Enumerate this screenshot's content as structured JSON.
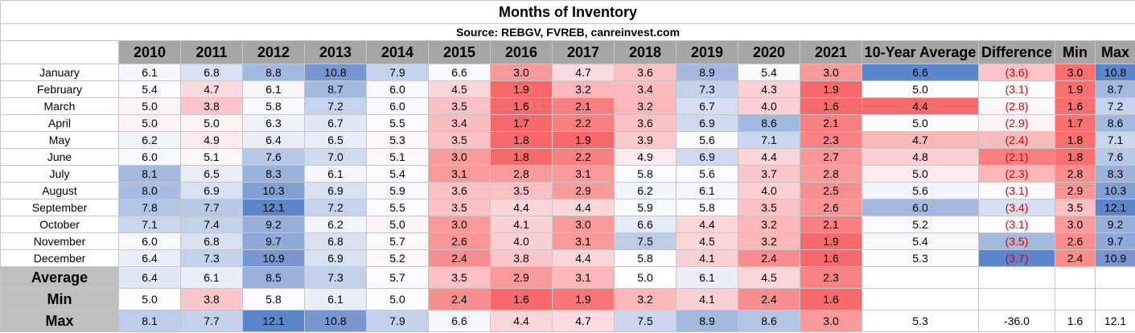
{
  "title": "Months of Inventory",
  "source": "Source: REBGV, FVREB, canreinvest.com",
  "headers": [
    "2010",
    "2011",
    "2012",
    "2013",
    "2014",
    "2015",
    "2016",
    "2017",
    "2018",
    "2019",
    "2020",
    "2021",
    "10-Year Average",
    "Difference",
    "Min",
    "Max"
  ],
  "rows": [
    {
      "label": "January",
      "values": [
        "6.1",
        "6.8",
        "8.8",
        "10.8",
        "7.9",
        "6.6",
        "3.0",
        "4.7",
        "3.6",
        "8.9",
        "5.4",
        "3.0",
        "6.6",
        "(3.6)",
        "3.0",
        "10.8"
      ],
      "colors": [
        "#f4f6fb",
        "#d8e1f1",
        "#a4b9e0",
        "#7896d0",
        "#c5d3ec",
        "#f7f9fc",
        "#f99a9a",
        "#f9dadf",
        "#fbc1c4",
        "#a5b9e0",
        "#f9f9fc",
        "#f99a9a",
        "#5b86cb",
        "#fbc4c8",
        "#fb6f6f",
        "#5b86cb"
      ]
    },
    {
      "label": "February",
      "values": [
        "5.4",
        "4.7",
        "6.1",
        "8.7",
        "6.0",
        "4.5",
        "1.9",
        "3.2",
        "3.4",
        "7.3",
        "4.3",
        "1.9",
        "5.0",
        "(3.1)",
        "1.9",
        "8.7"
      ],
      "colors": [
        "#fafbfe",
        "#f9dadf",
        "#f4f6fb",
        "#a4b9e0",
        "#f7f9fc",
        "#fbd6d9",
        "#f8696b",
        "#fbb6b9",
        "#fbbcc0",
        "#c4d1eb",
        "#fbd0d3",
        "#f8696b",
        "#fcfcff",
        "#fcfcff",
        "#fb6f6f",
        "#a4b9e0"
      ]
    },
    {
      "label": "March",
      "values": [
        "5.0",
        "3.8",
        "5.8",
        "7.2",
        "6.0",
        "3.5",
        "1.6",
        "2.1",
        "3.2",
        "6.7",
        "4.0",
        "1.6",
        "4.4",
        "(2.8)",
        "1.6",
        "7.2"
      ],
      "colors": [
        "#fcf3f5",
        "#fbc6c9",
        "#fafafe",
        "#c5d3ec",
        "#f7f9fc",
        "#fbc0c3",
        "#f8696b",
        "#f87e80",
        "#fbb6b9",
        "#d4dff2",
        "#fbcfd2",
        "#f8696b",
        "#f86b6d",
        "#fcf6f8",
        "#fb6f6f",
        "#c5d3ec"
      ]
    },
    {
      "label": "April",
      "values": [
        "5.0",
        "5.0",
        "6.3",
        "6.7",
        "5.5",
        "3.4",
        "1.7",
        "2.2",
        "3.6",
        "6.9",
        "8.6",
        "2.1",
        "5.0",
        "(2.9)",
        "1.7",
        "8.6"
      ],
      "colors": [
        "#fcf3f5",
        "#fcf3f5",
        "#eef2fa",
        "#e1e8f5",
        "#fafbfe",
        "#fbbcc0",
        "#f8696b",
        "#f87e80",
        "#fbc1c4",
        "#cfd9ef",
        "#a4b9e0",
        "#f87e80",
        "#fcfcff",
        "#fcf3f5",
        "#fb6f6f",
        "#a4b9e0"
      ]
    },
    {
      "label": "May",
      "values": [
        "6.2",
        "4.9",
        "6.4",
        "6.5",
        "5.3",
        "3.5",
        "1.8",
        "1.9",
        "3.9",
        "5.6",
        "7.1",
        "2.3",
        "4.7",
        "(2.4)",
        "1.8",
        "7.1"
      ],
      "colors": [
        "#f1f4fb",
        "#fcebee",
        "#eaeef8",
        "#e7ecf7",
        "#fcf6f8",
        "#fbc0c3",
        "#f8696b",
        "#f8696b",
        "#fbc9cc",
        "#fafbfe",
        "#c9d6ed",
        "#f88486",
        "#fbb6b9",
        "#fbbcc0",
        "#fb6f6f",
        "#c9d6ed"
      ]
    },
    {
      "label": "June",
      "values": [
        "6.0",
        "5.1",
        "7.6",
        "7.0",
        "5.1",
        "3.0",
        "1.8",
        "2.2",
        "4.9",
        "6.9",
        "4.4",
        "2.7",
        "4.8",
        "(2.1)",
        "1.8",
        "7.6"
      ],
      "colors": [
        "#f7f9fc",
        "#fcf6f8",
        "#b8c9e7",
        "#cfd9ef",
        "#fcf6f8",
        "#f99a9a",
        "#f8696b",
        "#f87e80",
        "#fcebee",
        "#cfd9ef",
        "#fbd6d9",
        "#f99497",
        "#fbcfd2",
        "#f87e80",
        "#fb6f6f",
        "#b8c9e7"
      ]
    },
    {
      "label": "July",
      "values": [
        "8.1",
        "6.5",
        "8.3",
        "6.1",
        "5.4",
        "3.1",
        "2.8",
        "3.1",
        "5.8",
        "5.6",
        "3.7",
        "2.8",
        "5.0",
        "(2.3)",
        "2.8",
        "8.3"
      ],
      "colors": [
        "#a4b9e0",
        "#e7ecf7",
        "#9ab1dc",
        "#f4f6fb",
        "#fafbfe",
        "#f99a9a",
        "#f99a9a",
        "#f99a9a",
        "#fafbfe",
        "#fafbfe",
        "#fbc6c9",
        "#f99a9a",
        "#fcebee",
        "#fbb6b9",
        "#fb8d8d",
        "#9ab1dc"
      ]
    },
    {
      "label": "August",
      "values": [
        "8.0",
        "6.9",
        "10.3",
        "6.9",
        "5.9",
        "3.6",
        "3.5",
        "2.9",
        "6.2",
        "6.1",
        "4.0",
        "2.5",
        "5.6",
        "(3.1)",
        "2.9",
        "10.3"
      ],
      "colors": [
        "#a8bce1",
        "#d8e1f1",
        "#81a0d4",
        "#d8e1f1",
        "#f7f9fc",
        "#fbc1c4",
        "#fbc0c3",
        "#f99a9a",
        "#f1f4fb",
        "#f4f6fb",
        "#fbcfd2",
        "#f88e90",
        "#f1f4fb",
        "#fcfcff",
        "#fb9494",
        "#81a0d4"
      ]
    },
    {
      "label": "September",
      "values": [
        "7.8",
        "7.7",
        "12.1",
        "7.2",
        "5.5",
        "3.5",
        "4.4",
        "4.4",
        "5.9",
        "5.8",
        "3.5",
        "2.6",
        "6.0",
        "(3.4)",
        "3.5",
        "12.1"
      ],
      "colors": [
        "#b3c5e5",
        "#b8c9e7",
        "#5b86cb",
        "#c5d3ec",
        "#fafbfe",
        "#fbc0c3",
        "#fbd6d9",
        "#fbd6d9",
        "#f7f9fc",
        "#fafbfe",
        "#fbc0c3",
        "#f99497",
        "#a4b9e0",
        "#d4dff2",
        "#fcc0c3",
        "#5b86cb"
      ]
    },
    {
      "label": "October",
      "values": [
        "7.1",
        "7.4",
        "9.2",
        "6.2",
        "5.0",
        "3.0",
        "4.1",
        "3.0",
        "6.6",
        "4.4",
        "3.2",
        "2.1",
        "5.2",
        "(3.1)",
        "3.0",
        "9.2"
      ],
      "colors": [
        "#c9d6ed",
        "#c4d1eb",
        "#98afdb",
        "#f1f4fb",
        "#fcf3f5",
        "#f99a9a",
        "#fbd0d3",
        "#f99a9a",
        "#e4eaf6",
        "#fbd6d9",
        "#fbb6b9",
        "#f87e80",
        "#f7f9fc",
        "#fcfcff",
        "#fb9a9a",
        "#98afdb"
      ]
    },
    {
      "label": "November",
      "values": [
        "6.0",
        "6.8",
        "9.7",
        "6.8",
        "5.7",
        "2.6",
        "4.0",
        "3.1",
        "7.5",
        "4.5",
        "3.2",
        "1.9",
        "5.4",
        "(3.5)",
        "2.6",
        "9.7"
      ],
      "colors": [
        "#f7f9fc",
        "#d8e1f1",
        "#8fa9d9",
        "#d8e1f1",
        "#f9f9fc",
        "#f99497",
        "#fbcfd2",
        "#f99a9a",
        "#bccce9",
        "#fbd6d9",
        "#fbb6b9",
        "#f8696b",
        "#f9f9fc",
        "#a4b9e0",
        "#fb8d8d",
        "#8fa9d9"
      ]
    },
    {
      "label": "December",
      "values": [
        "6.4",
        "7.3",
        "10.9",
        "6.9",
        "5.2",
        "2.4",
        "3.8",
        "4.4",
        "5.8",
        "4.1",
        "2.4",
        "1.6",
        "5.3",
        "(3.7)",
        "2.4",
        "10.9"
      ],
      "colors": [
        "#eaeef8",
        "#c4d1eb",
        "#7896d0",
        "#d8e1f1",
        "#fcf6f8",
        "#f88e90",
        "#fbc6c9",
        "#fbd6d9",
        "#fafbfe",
        "#fbd0d3",
        "#f88e90",
        "#f8696b",
        "#fcfcff",
        "#5b86cb",
        "#fb8d8d",
        "#7896d0"
      ]
    }
  ],
  "summary": [
    {
      "label": "Average",
      "values": [
        "6.4",
        "6.1",
        "8.5",
        "7.3",
        "5.7",
        "3.5",
        "2.9",
        "3.1",
        "5.0",
        "6.1",
        "4.5",
        "2.3",
        "",
        "",
        "",
        ""
      ],
      "colors": [
        "#dfe6f4",
        "#eaeef8",
        "#9ab1dc",
        "#c4d1eb",
        "#fafbfe",
        "#fbc0c3",
        "#f99a9a",
        "#fbb6b9",
        "#ffffff",
        "#eaeef8",
        "#fbd6d9",
        "#f88486",
        "#ffffff",
        "#ffffff",
        "#ffffff",
        "#ffffff"
      ]
    },
    {
      "label": "Min",
      "values": [
        "5.0",
        "3.8",
        "5.8",
        "6.1",
        "5.0",
        "2.4",
        "1.6",
        "1.9",
        "3.2",
        "4.1",
        "2.4",
        "1.6",
        "",
        "",
        "",
        ""
      ],
      "colors": [
        "#fcfcff",
        "#fbc6c9",
        "#fafbfe",
        "#eaeef8",
        "#fcfcff",
        "#f88e90",
        "#f8696b",
        "#f87578",
        "#fbb6b9",
        "#fbd0d3",
        "#f88e90",
        "#f8696b",
        "#ffffff",
        "#ffffff",
        "#ffffff",
        "#ffffff"
      ]
    },
    {
      "label": "Max",
      "values": [
        "8.1",
        "7.7",
        "12.1",
        "10.8",
        "7.9",
        "6.6",
        "4.4",
        "4.7",
        "7.5",
        "8.9",
        "8.6",
        "3.0",
        "5.3",
        "-36.0",
        "1.6",
        "12.1"
      ],
      "colors": [
        "#bccce9",
        "#c4d1eb",
        "#5b86cb",
        "#7896d0",
        "#c4d1eb",
        "#f4f6fb",
        "#fbd6d9",
        "#fcdcdf",
        "#c9d6ed",
        "#a4b9e0",
        "#b3c5e5",
        "#f99a9a",
        "#ffffff",
        "#ffffff",
        "#ffffff",
        "#ffffff"
      ]
    }
  ]
}
